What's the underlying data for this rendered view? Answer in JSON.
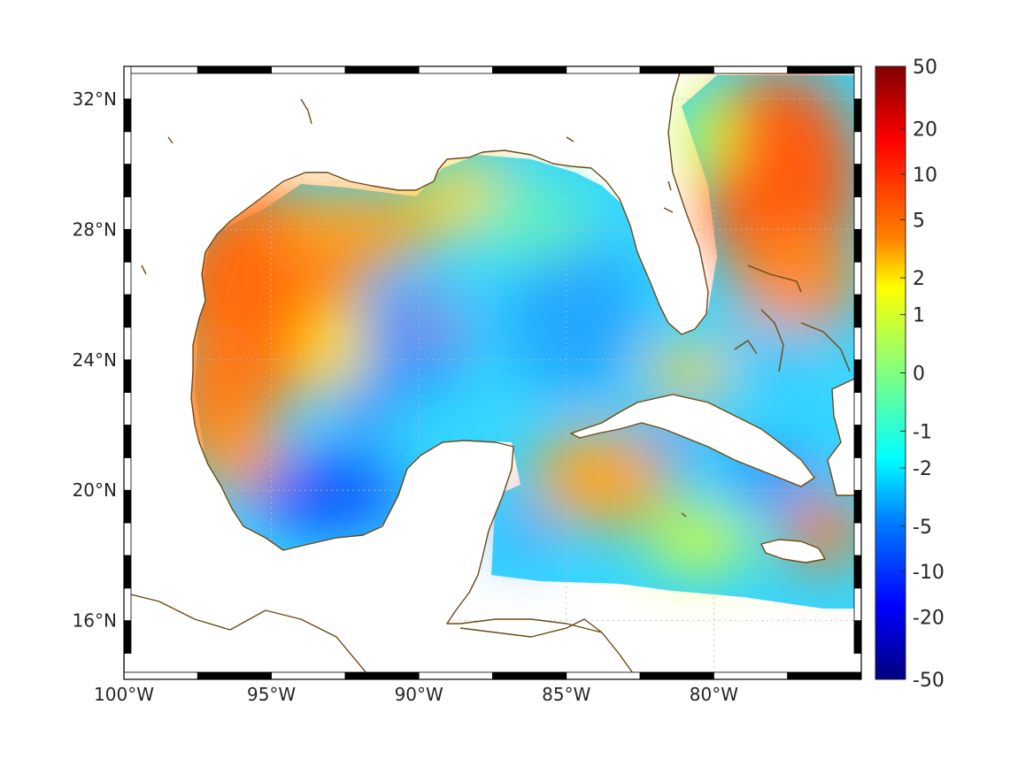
{
  "map": {
    "lon_range": [
      -100,
      -75
    ],
    "lat_range": [
      14.2,
      33
    ],
    "grid": true,
    "coastline_color": "#6b4a14",
    "lon_ticks": [
      {
        "value": -100,
        "label": "100°W"
      },
      {
        "value": -95,
        "label": "95°W"
      },
      {
        "value": -90,
        "label": "90°W"
      },
      {
        "value": -85,
        "label": "85°W"
      },
      {
        "value": -80,
        "label": "80°W"
      }
    ],
    "lat_ticks": [
      {
        "value": 32,
        "label": "32°N"
      },
      {
        "value": 28,
        "label": "28°N"
      },
      {
        "value": 24,
        "label": "24°N"
      },
      {
        "value": 20,
        "label": "20°N"
      },
      {
        "value": 16,
        "label": "16°N"
      }
    ]
  },
  "colorbar": {
    "colormap": "jet",
    "labels": [
      "50",
      "20",
      "10",
      "5",
      "2",
      "1",
      "0",
      "-1",
      "-2",
      "-5",
      "-10",
      "-20",
      "-50"
    ]
  },
  "features": {
    "cold_regions": [
      {
        "lon": -90.5,
        "lat": 25.0
      },
      {
        "lon": -92.0,
        "lat": 19.8
      },
      {
        "lon": -91.6,
        "lat": 22.3
      },
      {
        "lon": -84.1,
        "lat": 25.0
      },
      {
        "lon": -83.0,
        "lat": 21.6
      },
      {
        "lon": -79.3,
        "lat": 20.6
      }
    ],
    "warm_regions": [
      {
        "lon": -96.5,
        "lat": 26.3
      },
      {
        "lon": -78.5,
        "lat": 30.0
      },
      {
        "lon": -84.5,
        "lat": 19.5
      },
      {
        "lon": -76.5,
        "lat": 18.2
      }
    ]
  }
}
